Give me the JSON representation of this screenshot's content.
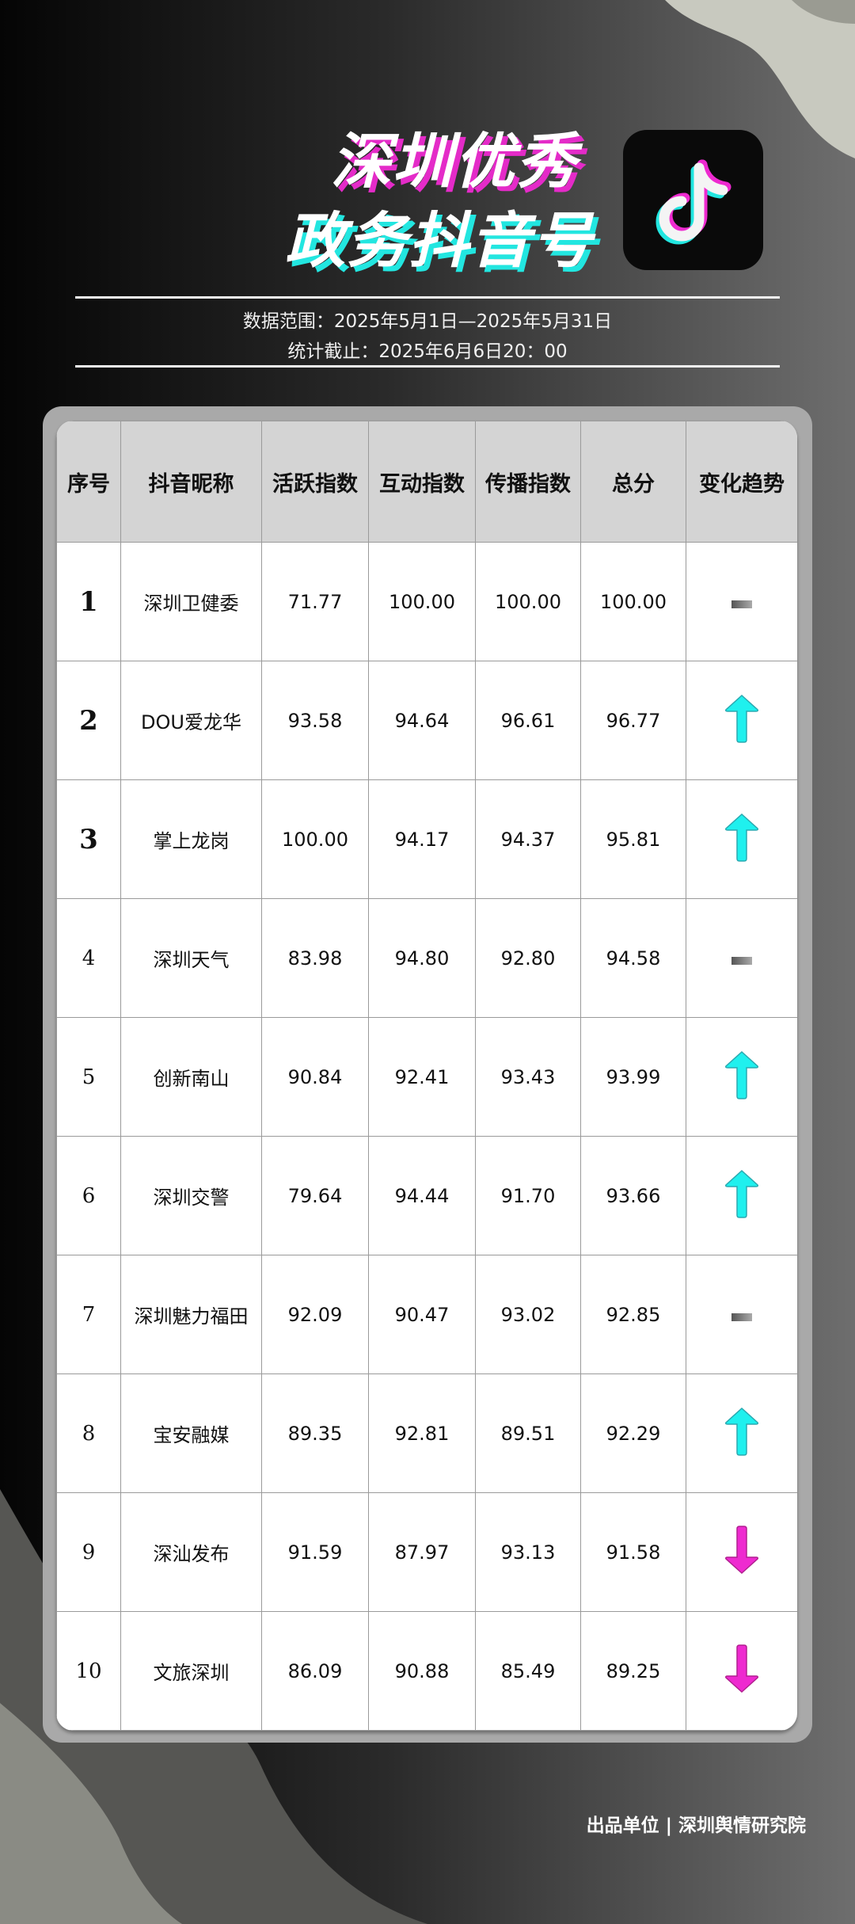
{
  "title": {
    "line1": "深圳优秀",
    "line2": "政务抖音号"
  },
  "meta": {
    "range": "数据范围：2025年5月1日—2025年5月31日",
    "cutoff": "统计截止：2025年6月6日20：00"
  },
  "colors": {
    "up": "#1ff0ee",
    "down": "#ee2ad0",
    "flat": "#666666",
    "accent_pink": "#e42bc8",
    "accent_cyan": "#22e6e0"
  },
  "logo_icon": "douyin-logo-icon",
  "table": {
    "headers": [
      "序号",
      "抖音昵称",
      "活跃指数",
      "互动指数",
      "传播指数",
      "总分",
      "变化趋势"
    ],
    "rows": [
      {
        "rank": "1",
        "name": "深圳卫健委",
        "active": "71.77",
        "interact": "100.00",
        "spread": "100.00",
        "total": "100.00",
        "trend": "flat"
      },
      {
        "rank": "2",
        "name": "DOU爱龙华",
        "active": "93.58",
        "interact": "94.64",
        "spread": "96.61",
        "total": "96.77",
        "trend": "up"
      },
      {
        "rank": "3",
        "name": "掌上龙岗",
        "active": "100.00",
        "interact": "94.17",
        "spread": "94.37",
        "total": "95.81",
        "trend": "up"
      },
      {
        "rank": "4",
        "name": "深圳天气",
        "active": "83.98",
        "interact": "94.80",
        "spread": "92.80",
        "total": "94.58",
        "trend": "flat"
      },
      {
        "rank": "5",
        "name": "创新南山",
        "active": "90.84",
        "interact": "92.41",
        "spread": "93.43",
        "total": "93.99",
        "trend": "up"
      },
      {
        "rank": "6",
        "name": "深圳交警",
        "active": "79.64",
        "interact": "94.44",
        "spread": "91.70",
        "total": "93.66",
        "trend": "up"
      },
      {
        "rank": "7",
        "name": "深圳魅力福田",
        "active": "92.09",
        "interact": "90.47",
        "spread": "93.02",
        "total": "92.85",
        "trend": "flat"
      },
      {
        "rank": "8",
        "name": "宝安融媒",
        "active": "89.35",
        "interact": "92.81",
        "spread": "89.51",
        "total": "92.29",
        "trend": "up"
      },
      {
        "rank": "9",
        "name": "深汕发布",
        "active": "91.59",
        "interact": "87.97",
        "spread": "93.13",
        "total": "91.58",
        "trend": "down"
      },
      {
        "rank": "10",
        "name": "文旅深圳",
        "active": "86.09",
        "interact": "90.88",
        "spread": "85.49",
        "total": "89.25",
        "trend": "down"
      }
    ]
  },
  "footer": "出品单位 | 深圳舆情研究院"
}
